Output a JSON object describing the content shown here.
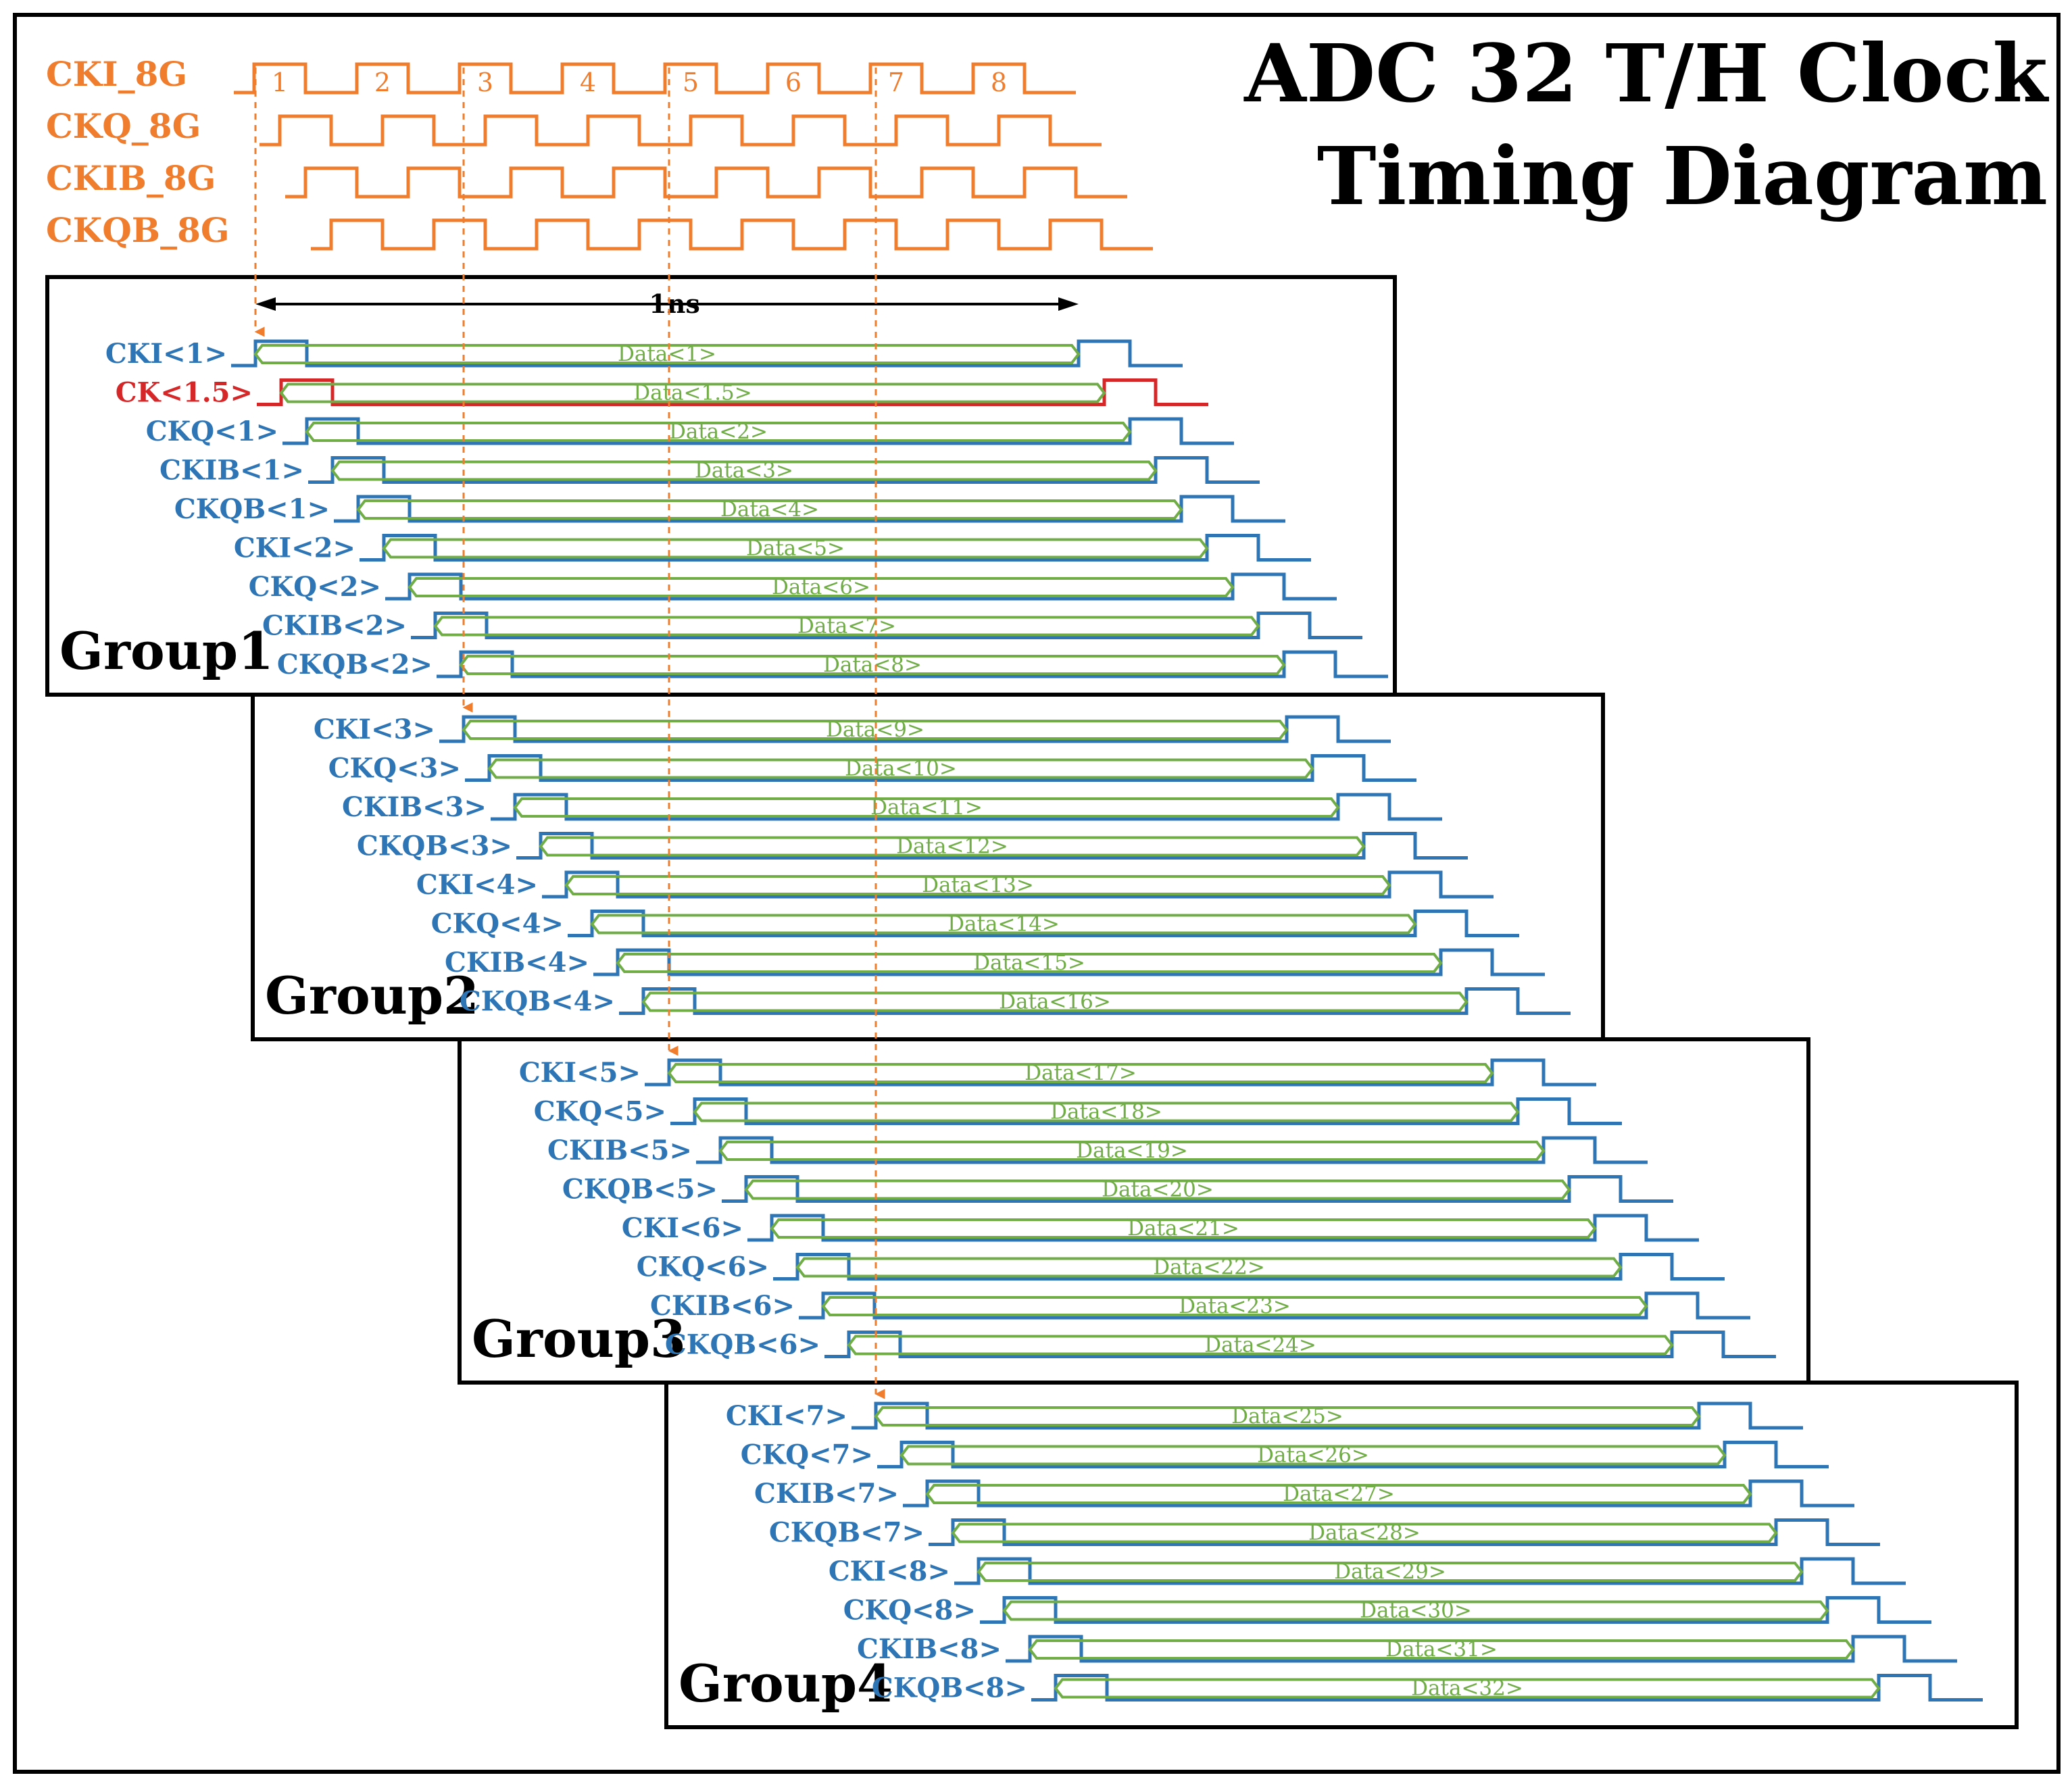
{
  "title": [
    "ADC 32 T/H Clock",
    "Timing Diagram"
  ],
  "colors": {
    "reference": "#f07d2e",
    "clock": "#2e75b6",
    "half_clock": "#d62728",
    "data_window": "#70ad47",
    "frame": "#000000"
  },
  "reference_clocks": [
    "CKI_8G",
    "CKQ_8G",
    "CKIB_8G",
    "CKQB_8G"
  ],
  "pulse_numbers": [
    "1",
    "2",
    "3",
    "4",
    "5",
    "6",
    "7",
    "8"
  ],
  "span_label": "1ns",
  "groups": [
    {
      "label": "Group1",
      "rows": [
        {
          "clock": "CKI<1>",
          "data": "Data<1>"
        },
        {
          "clock": "CK<1.5>",
          "data": "Data<1.5>",
          "highlight": true
        },
        {
          "clock": "CKQ<1>",
          "data": "Data<2>"
        },
        {
          "clock": "CKIB<1>",
          "data": "Data<3>"
        },
        {
          "clock": "CKQB<1>",
          "data": "Data<4>"
        },
        {
          "clock": "CKI<2>",
          "data": "Data<5>"
        },
        {
          "clock": "CKQ<2>",
          "data": "Data<6>"
        },
        {
          "clock": "CKIB<2>",
          "data": "Data<7>"
        },
        {
          "clock": "CKQB<2>",
          "data": "Data<8>"
        }
      ]
    },
    {
      "label": "Group2",
      "rows": [
        {
          "clock": "CKI<3>",
          "data": "Data<9>"
        },
        {
          "clock": "CKQ<3>",
          "data": "Data<10>"
        },
        {
          "clock": "CKIB<3>",
          "data": "Data<11>"
        },
        {
          "clock": "CKQB<3>",
          "data": "Data<12>"
        },
        {
          "clock": "CKI<4>",
          "data": "Data<13>"
        },
        {
          "clock": "CKQ<4>",
          "data": "Data<14>"
        },
        {
          "clock": "CKIB<4>",
          "data": "Data<15>"
        },
        {
          "clock": "CKQB<4>",
          "data": "Data<16>"
        }
      ]
    },
    {
      "label": "Group3",
      "rows": [
        {
          "clock": "CKI<5>",
          "data": "Data<17>"
        },
        {
          "clock": "CKQ<5>",
          "data": "Data<18>"
        },
        {
          "clock": "CKIB<5>",
          "data": "Data<19>"
        },
        {
          "clock": "CKQB<5>",
          "data": "Data<20>"
        },
        {
          "clock": "CKI<6>",
          "data": "Data<21>"
        },
        {
          "clock": "CKQ<6>",
          "data": "Data<22>"
        },
        {
          "clock": "CKIB<6>",
          "data": "Data<23>"
        },
        {
          "clock": "CKQB<6>",
          "data": "Data<24>"
        }
      ]
    },
    {
      "label": "Group4",
      "rows": [
        {
          "clock": "CKI<7>",
          "data": "Data<25>"
        },
        {
          "clock": "CKQ<7>",
          "data": "Data<26>"
        },
        {
          "clock": "CKIB<7>",
          "data": "Data<27>"
        },
        {
          "clock": "CKQB<7>",
          "data": "Data<28>"
        },
        {
          "clock": "CKI<8>",
          "data": "Data<29>"
        },
        {
          "clock": "CKQ<8>",
          "data": "Data<30>"
        },
        {
          "clock": "CKIB<8>",
          "data": "Data<31>"
        },
        {
          "clock": "CKQB<8>",
          "data": "Data<32>"
        }
      ]
    }
  ]
}
